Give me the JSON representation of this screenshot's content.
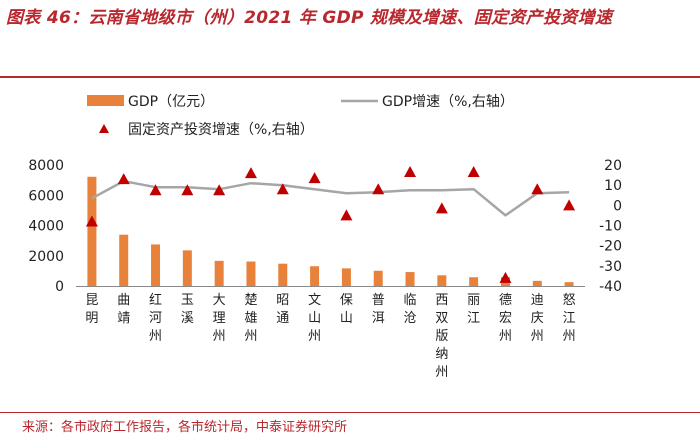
{
  "title": "图表 46：云南省地级市（州）2021 年 GDP 规模及增速、固定资产投资增速",
  "source": "来源：各市政府工作报告，各市统计局，中泰证券研究所",
  "colors": {
    "bar": "#e8823a",
    "line": "#a6a6a6",
    "marker": "#c00000",
    "accent": "#b8282e"
  },
  "chart_data": {
    "type": "bar",
    "categories": [
      "昆明",
      "曲靖",
      "红河州",
      "玉溪",
      "大理州",
      "楚雄州",
      "昭通",
      "文山州",
      "保山",
      "普洱",
      "临沧",
      "西双版纳州",
      "丽江",
      "德宏州",
      "迪庆州",
      "怒江州"
    ],
    "series": [
      {
        "name": "GDP（亿元）",
        "type": "bar",
        "axis": "left",
        "values": [
          7222,
          3393,
          2747,
          2358,
          1662,
          1620,
          1475,
          1306,
          1166,
          1008,
          921,
          707,
          578,
          591,
          340,
          253
        ]
      },
      {
        "name": "GDP增速（%,右轴）",
        "type": "line",
        "axis": "right",
        "values": [
          3.5,
          12.0,
          9.0,
          9.0,
          8.0,
          11.0,
          10.0,
          8.0,
          6.0,
          6.5,
          7.5,
          7.5,
          8.0,
          -5.0,
          6.0,
          6.5
        ]
      },
      {
        "name": "固定资产投资增速（%,右轴）",
        "type": "scatter",
        "axis": "right",
        "values": [
          -8.0,
          13.0,
          7.5,
          7.5,
          7.5,
          16.0,
          8.0,
          13.5,
          -5.0,
          8.0,
          16.5,
          -1.5,
          16.5,
          -36.0,
          8.0,
          0.0
        ]
      }
    ],
    "left_axis": {
      "ylim": [
        0,
        8000
      ],
      "ticks": [
        "0",
        "2000",
        "4000",
        "6000",
        "8000"
      ]
    },
    "right_axis": {
      "ylim": [
        -40,
        20
      ],
      "ticks": [
        "-40",
        "-30",
        "-20",
        "-10",
        "0",
        "10",
        "20"
      ]
    },
    "legend": [
      {
        "label": "GDP（亿元）",
        "kind": "bar"
      },
      {
        "label": "GDP增速（%,右轴）",
        "kind": "line"
      },
      {
        "label": "固定资产投资增速（%,右轴）",
        "kind": "marker"
      }
    ]
  }
}
